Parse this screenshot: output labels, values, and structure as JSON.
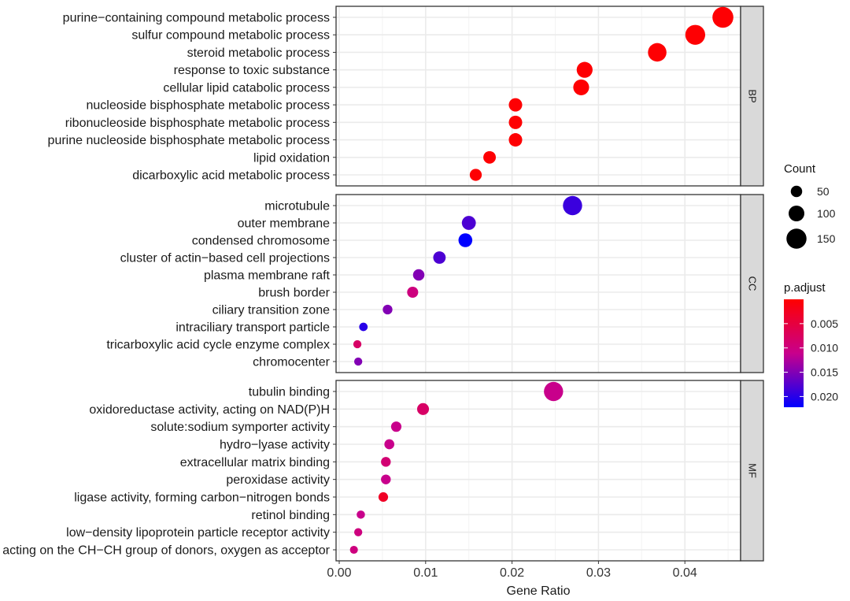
{
  "chart_data": {
    "type": "scatter",
    "xlabel": "Gene Ratio",
    "xlim": [
      0,
      0.047
    ],
    "xticks": [
      0,
      0.01,
      0.02,
      0.03,
      0.04
    ],
    "xtick_labels": [
      "0.00",
      "0.01",
      "0.02",
      "0.03",
      "0.04"
    ],
    "grid": true,
    "size_legend": {
      "title": "Count",
      "breaks": [
        50,
        100,
        150
      ],
      "labels": [
        "50",
        "100",
        "150"
      ]
    },
    "color_legend": {
      "title": "p.adjust",
      "low_color": "#ff0000",
      "high_color": "#0000ff",
      "range": [
        0,
        0.0222
      ],
      "breaks": [
        0.005,
        0.01,
        0.015,
        0.02
      ],
      "labels": [
        "0.005",
        "0.010",
        "0.015",
        "0.020"
      ]
    },
    "legend_placement": "right",
    "panels": [
      {
        "name": "BP",
        "terms": [
          {
            "label": "purine−containing compound metabolic process",
            "x": 0.0444,
            "count": 160,
            "p": 0.0002
          },
          {
            "label": "sulfur compound metabolic process",
            "x": 0.0412,
            "count": 148,
            "p": 0.0002
          },
          {
            "label": "steroid metabolic process",
            "x": 0.0368,
            "count": 132,
            "p": 0.0002
          },
          {
            "label": "response to toxic substance",
            "x": 0.0284,
            "count": 102,
            "p": 0.0002
          },
          {
            "label": "cellular lipid catabolic process",
            "x": 0.028,
            "count": 101,
            "p": 0.0002
          },
          {
            "label": "nucleoside bisphosphate metabolic process",
            "x": 0.0204,
            "count": 73,
            "p": 0.0002
          },
          {
            "label": "ribonucleoside bisphosphate metabolic process",
            "x": 0.0204,
            "count": 73,
            "p": 0.0002
          },
          {
            "label": "purine nucleoside bisphosphate metabolic process",
            "x": 0.0204,
            "count": 73,
            "p": 0.0002
          },
          {
            "label": "lipid oxidation",
            "x": 0.0174,
            "count": 63,
            "p": 0.0002
          },
          {
            "label": "dicarboxylic acid metabolic process",
            "x": 0.0158,
            "count": 57,
            "p": 0.0002
          }
        ]
      },
      {
        "name": "CC",
        "terms": [
          {
            "label": "microtubule",
            "x": 0.027,
            "count": 140,
            "p": 0.019
          },
          {
            "label": "outer membrane",
            "x": 0.015,
            "count": 80,
            "p": 0.018
          },
          {
            "label": "condensed chromosome",
            "x": 0.0146,
            "count": 78,
            "p": 0.0222
          },
          {
            "label": "cluster of actin−based cell projections",
            "x": 0.0116,
            "count": 62,
            "p": 0.018
          },
          {
            "label": "plasma membrane raft",
            "x": 0.0092,
            "count": 50,
            "p": 0.015
          },
          {
            "label": "brush border",
            "x": 0.0085,
            "count": 46,
            "p": 0.01
          },
          {
            "label": "ciliary transition zone",
            "x": 0.0056,
            "count": 30,
            "p": 0.015
          },
          {
            "label": "intraciliary transport particle",
            "x": 0.0028,
            "count": 16,
            "p": 0.02
          },
          {
            "label": "tricarboxylic acid cycle enzyme complex",
            "x": 0.0021,
            "count": 12,
            "p": 0.008
          },
          {
            "label": "chromocenter",
            "x": 0.0022,
            "count": 12,
            "p": 0.015
          }
        ]
      },
      {
        "name": "MF",
        "terms": [
          {
            "label": "tubulin binding",
            "x": 0.0248,
            "count": 140,
            "p": 0.011
          },
          {
            "label": "oxidoreductase activity, acting on NAD(P)H",
            "x": 0.0097,
            "count": 55,
            "p": 0.008
          },
          {
            "label": "solute:sodium symporter activity",
            "x": 0.0066,
            "count": 38,
            "p": 0.011
          },
          {
            "label": "hydro−lyase activity",
            "x": 0.0058,
            "count": 33,
            "p": 0.011
          },
          {
            "label": "extracellular matrix binding",
            "x": 0.0054,
            "count": 31,
            "p": 0.009
          },
          {
            "label": "peroxidase activity",
            "x": 0.0054,
            "count": 31,
            "p": 0.011
          },
          {
            "label": "ligase activity, forming carbon−nitrogen bonds",
            "x": 0.0051,
            "count": 29,
            "p": 0.003
          },
          {
            "label": "retinol binding",
            "x": 0.0025,
            "count": 14,
            "p": 0.011
          },
          {
            "label": "low−density lipoprotein particle receptor activity",
            "x": 0.0022,
            "count": 12,
            "p": 0.01
          },
          {
            "label": "oxidoreductase activity, acting on the CH−CH group of donors, oxygen as acceptor",
            "x": 0.0017,
            "count": 10,
            "p": 0.01
          }
        ]
      }
    ]
  }
}
